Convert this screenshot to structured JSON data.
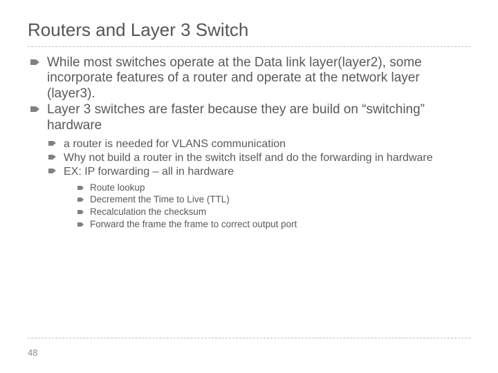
{
  "title": "Routers and Layer 3 Switch",
  "bullets": {
    "lvl1": [
      "While most switches operate at the Data link layer(layer2), some incorporate features of a router and operate at the network layer (layer3).",
      "Layer 3 switches are faster because they are build on “switching” hardware"
    ],
    "lvl2": [
      " a router is needed for VLANS communication",
      "Why not build a router in the switch itself and do the forwarding in hardware",
      "EX: IP forwarding – all in hardware"
    ],
    "lvl3": [
      "Route lookup",
      "Decrement the Time to Live (TTL)",
      "Recalculation the checksum",
      "Forward the frame the frame to correct output port"
    ]
  },
  "pageNumber": "48",
  "colors": {
    "text": "#595959",
    "title": "#555555",
    "bullet": "#808080",
    "divider": "#bfbfbf",
    "background": "#ffffff"
  },
  "typography": {
    "title_fontsize": 26,
    "lvl1_fontsize": 19,
    "lvl2_fontsize": 16,
    "lvl3_fontsize": 13.5,
    "footer_fontsize": 13,
    "font_family": "Arial"
  }
}
